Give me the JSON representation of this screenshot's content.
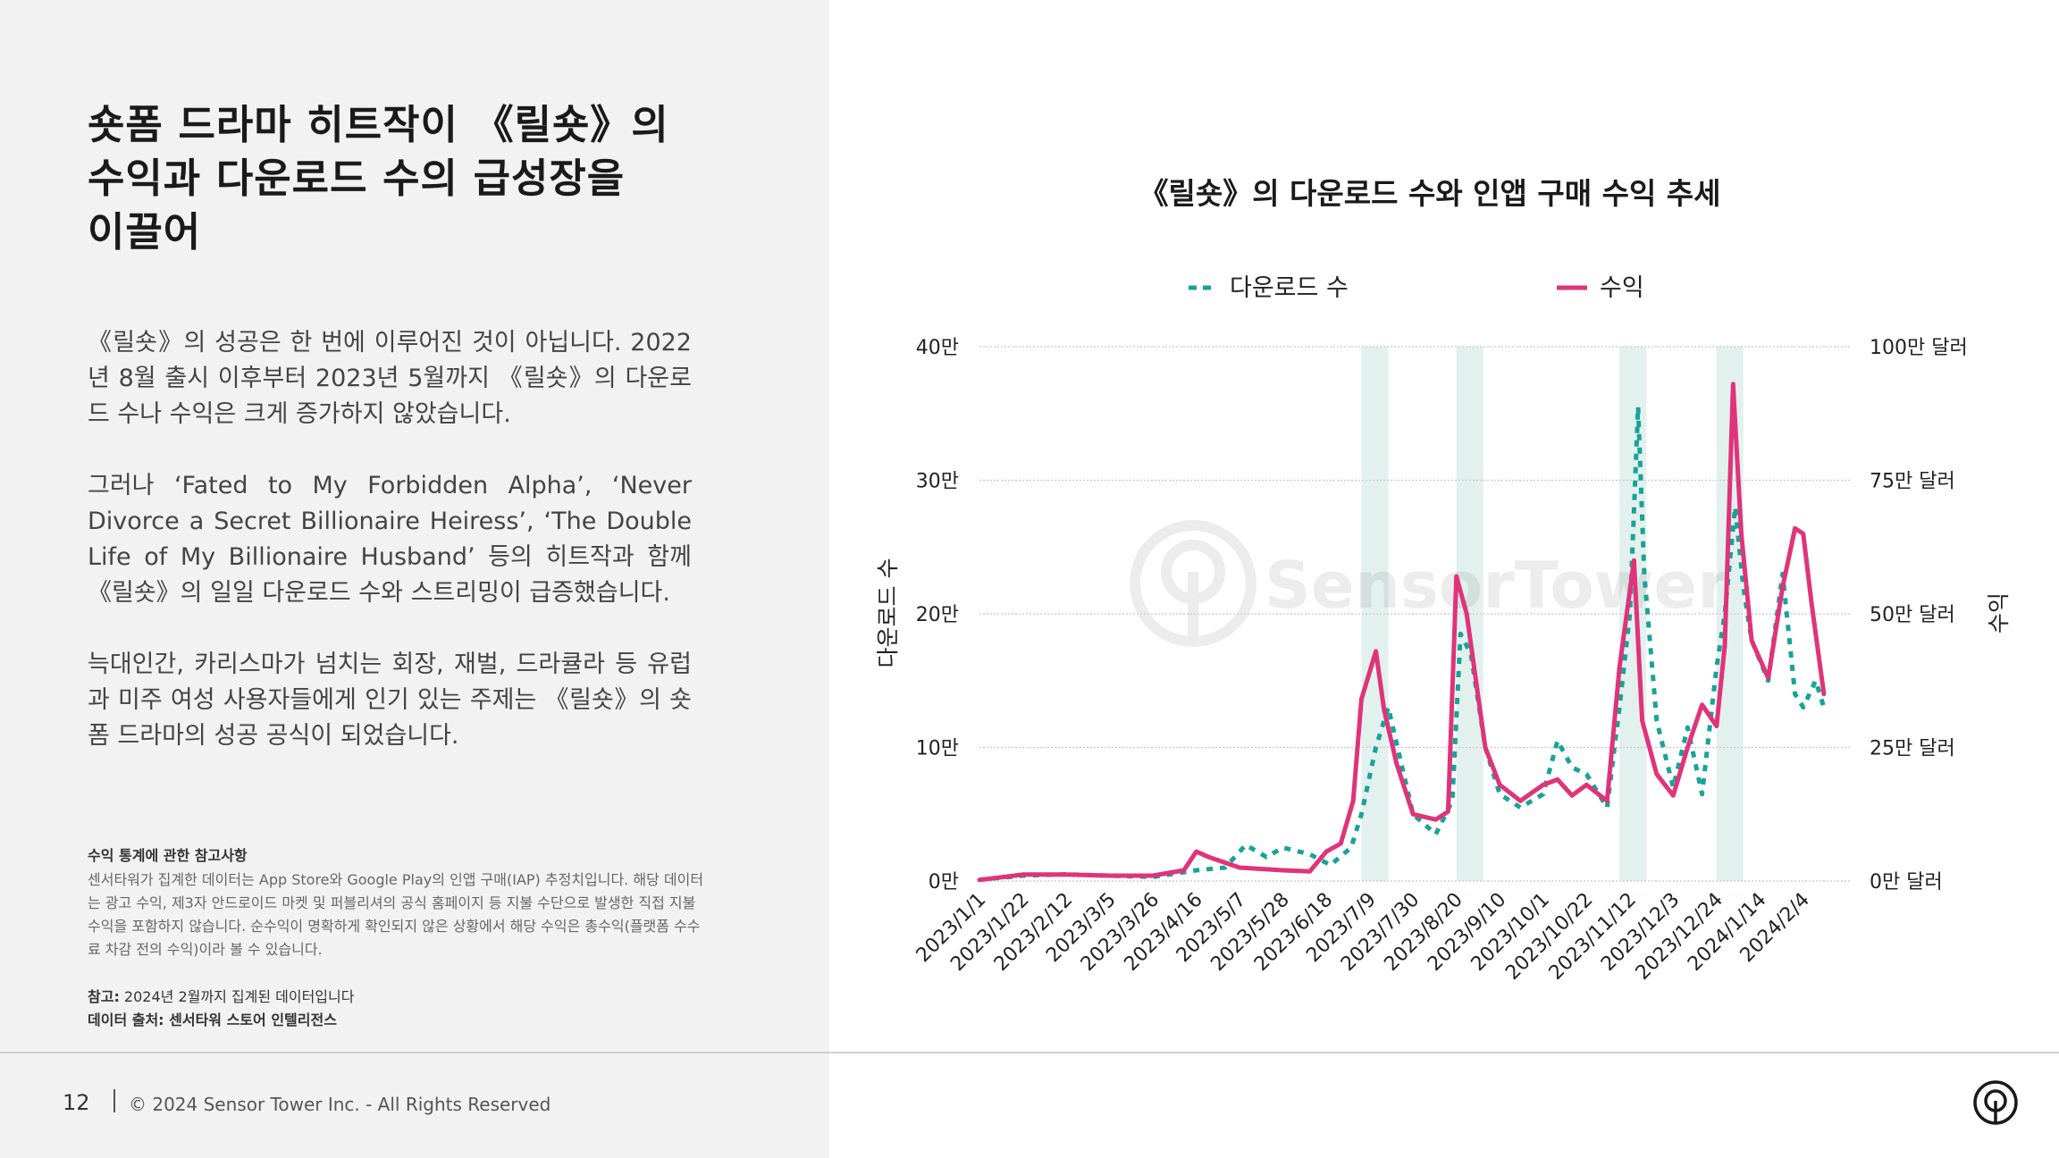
{
  "headline": "숏폼 드라마 히트작이 《릴숏》의 수익과 다운로드 수의 급성장을 이끌어",
  "paragraphs": [
    "《릴숏》의 성공은 한 번에 이루어진 것이 아닙니다. 2022년 8월 출시 이후부터 2023년 5월까지 《릴숏》의 다운로드 수나 수익은 크게 증가하지 않았습니다.",
    "그러나 ‘Fated to My Forbidden Alpha’, ‘Never Divorce a Secret Billionaire Heiress’, ‘The Double Life of My Billionaire Husband’ 등의 히트작과 함께 《릴숏》의 일일 다운로드 수와 스트리밍이 급증했습니다.",
    "늑대인간, 카리스마가 넘치는 회장, 재벌, 드라큘라 등 유럽과 미주 여성 사용자들에게 인기 있는 주제는 《릴숏》의 숏폼 드라마의 성공 공식이 되었습니다."
  ],
  "note": {
    "title": "수익 통계에 관한 참고사항",
    "text": "센서타워가 집계한 데이터는 App Store와 Google Play의 인앱 구매(IAP) 추정치입니다. 해당 데이터는 광고 수익, 제3자 안드로이드 마켓 및 퍼블리셔의 공식 홈페이지 등 지불 수단으로 발생한 직접 지불 수익을 포함하지 않습니다. 순수익이 명확하게 확인되지 않은 상황에서 해당 수익은 총수익(플랫폼 수수료 차감 전의 수익)이라 볼 수 있습니다.",
    "ref_label": "참고:",
    "ref_text": " 2024년 2월까지 집계된 데이터입니다",
    "source": "데이터 출처: 센서타워 스토어 인텔리전스"
  },
  "footer": {
    "page": "12",
    "copyright": "© 2024 Sensor Tower Inc. - All Rights Reserved"
  },
  "watermark": "SensorTower",
  "colors": {
    "downloads": "#17a398",
    "revenue": "#e0337a",
    "highlight": "#e3f1ee",
    "grid": "#c8c8c8"
  },
  "chart_data": {
    "type": "line",
    "title": "《릴숏》의 다운로드 수와 인앱 구매 수익 추세",
    "ylabel_left": "다운로드 수",
    "ylabel_right": "수익",
    "y_left_ticks": [
      "0만",
      "10만",
      "20만",
      "30만",
      "40만"
    ],
    "y_right_ticks": [
      "0만 달러",
      "25만 달러",
      "50만 달러",
      "75만 달러",
      "100만 달러"
    ],
    "y_left_range": [
      0,
      400000
    ],
    "y_right_range": [
      0,
      1000000
    ],
    "legend_position": "top",
    "grid": true,
    "x_tick_labels": [
      "2023/1/1",
      "2023/1/22",
      "2023/2/12",
      "2023/3/5",
      "2023/3/26",
      "2023/4/16",
      "2023/5/7",
      "2023/5/28",
      "2023/6/18",
      "2023/7/9",
      "2023/7/30",
      "2023/8/20",
      "2023/9/10",
      "2023/10/1",
      "2023/10/22",
      "2023/11/12",
      "2023/12/3",
      "2023/12/24",
      "2024/1/14",
      "2024/2/4"
    ],
    "highlight_ranges": [
      [
        "2023/7/5",
        "2023/7/18"
      ],
      [
        "2023/8/20",
        "2023/9/2"
      ],
      [
        "2023/11/7",
        "2023/11/20"
      ],
      [
        "2023/12/24",
        "2024/1/6"
      ]
    ],
    "series": [
      {
        "name": "다운로드 수",
        "axis": "left",
        "style": "dashed",
        "points": [
          [
            "2023/1/1",
            1000
          ],
          [
            "2023/1/22",
            4000
          ],
          [
            "2023/2/12",
            5000
          ],
          [
            "2023/3/5",
            4000
          ],
          [
            "2023/3/26",
            3000
          ],
          [
            "2023/4/16",
            8000
          ],
          [
            "2023/4/30",
            10000
          ],
          [
            "2023/5/10",
            27000
          ],
          [
            "2023/5/20",
            18000
          ],
          [
            "2023/5/28",
            25000
          ],
          [
            "2023/6/10",
            20000
          ],
          [
            "2023/6/20",
            12000
          ],
          [
            "2023/6/30",
            25000
          ],
          [
            "2023/7/5",
            50000
          ],
          [
            "2023/7/12",
            100000
          ],
          [
            "2023/7/18",
            130000
          ],
          [
            "2023/7/24",
            90000
          ],
          [
            "2023/7/30",
            50000
          ],
          [
            "2023/8/10",
            35000
          ],
          [
            "2023/8/18",
            60000
          ],
          [
            "2023/8/22",
            185000
          ],
          [
            "2023/8/27",
            170000
          ],
          [
            "2023/9/3",
            100000
          ],
          [
            "2023/9/10",
            65000
          ],
          [
            "2023/9/20",
            55000
          ],
          [
            "2023/10/1",
            65000
          ],
          [
            "2023/10/8",
            105000
          ],
          [
            "2023/10/15",
            85000
          ],
          [
            "2023/10/22",
            80000
          ],
          [
            "2023/11/1",
            55000
          ],
          [
            "2023/11/7",
            130000
          ],
          [
            "2023/11/12",
            200000
          ],
          [
            "2023/11/16",
            355000
          ],
          [
            "2023/11/19",
            230000
          ],
          [
            "2023/11/25",
            120000
          ],
          [
            "2023/12/3",
            70000
          ],
          [
            "2023/12/10",
            115000
          ],
          [
            "2023/12/17",
            65000
          ],
          [
            "2023/12/24",
            160000
          ],
          [
            "2023/12/28",
            200000
          ],
          [
            "2024/1/2",
            280000
          ],
          [
            "2024/1/6",
            220000
          ],
          [
            "2024/1/10",
            180000
          ],
          [
            "2024/1/18",
            150000
          ],
          [
            "2024/1/25",
            230000
          ],
          [
            "2024/1/31",
            140000
          ],
          [
            "2024/2/4",
            130000
          ],
          [
            "2024/2/10",
            150000
          ],
          [
            "2024/2/14",
            130000
          ]
        ]
      },
      {
        "name": "수익",
        "axis": "right",
        "style": "solid",
        "points": [
          [
            "2023/1/1",
            2000
          ],
          [
            "2023/1/22",
            12000
          ],
          [
            "2023/2/12",
            12000
          ],
          [
            "2023/3/5",
            10000
          ],
          [
            "2023/3/26",
            10000
          ],
          [
            "2023/4/10",
            20000
          ],
          [
            "2023/4/16",
            55000
          ],
          [
            "2023/4/22",
            45000
          ],
          [
            "2023/5/7",
            25000
          ],
          [
            "2023/5/28",
            20000
          ],
          [
            "2023/6/10",
            18000
          ],
          [
            "2023/6/18",
            55000
          ],
          [
            "2023/6/25",
            70000
          ],
          [
            "2023/7/1",
            150000
          ],
          [
            "2023/7/5",
            340000
          ],
          [
            "2023/7/12",
            430000
          ],
          [
            "2023/7/16",
            320000
          ],
          [
            "2023/7/22",
            220000
          ],
          [
            "2023/7/30",
            125000
          ],
          [
            "2023/8/10",
            115000
          ],
          [
            "2023/8/16",
            130000
          ],
          [
            "2023/8/20",
            570000
          ],
          [
            "2023/8/25",
            500000
          ],
          [
            "2023/9/3",
            250000
          ],
          [
            "2023/9/10",
            180000
          ],
          [
            "2023/9/20",
            150000
          ],
          [
            "2023/10/1",
            180000
          ],
          [
            "2023/10/8",
            190000
          ],
          [
            "2023/10/15",
            160000
          ],
          [
            "2023/10/22",
            180000
          ],
          [
            "2023/11/1",
            150000
          ],
          [
            "2023/11/7",
            400000
          ],
          [
            "2023/11/14",
            600000
          ],
          [
            "2023/11/18",
            300000
          ],
          [
            "2023/11/25",
            200000
          ],
          [
            "2023/12/3",
            160000
          ],
          [
            "2023/12/10",
            250000
          ],
          [
            "2023/12/17",
            330000
          ],
          [
            "2023/12/24",
            290000
          ],
          [
            "2023/12/28",
            440000
          ],
          [
            "2024/1/1",
            930000
          ],
          [
            "2024/1/5",
            650000
          ],
          [
            "2024/1/10",
            450000
          ],
          [
            "2024/1/18",
            380000
          ],
          [
            "2024/1/25",
            550000
          ],
          [
            "2024/1/31",
            660000
          ],
          [
            "2024/2/4",
            650000
          ],
          [
            "2024/2/8",
            520000
          ],
          [
            "2024/2/14",
            350000
          ]
        ]
      }
    ]
  }
}
